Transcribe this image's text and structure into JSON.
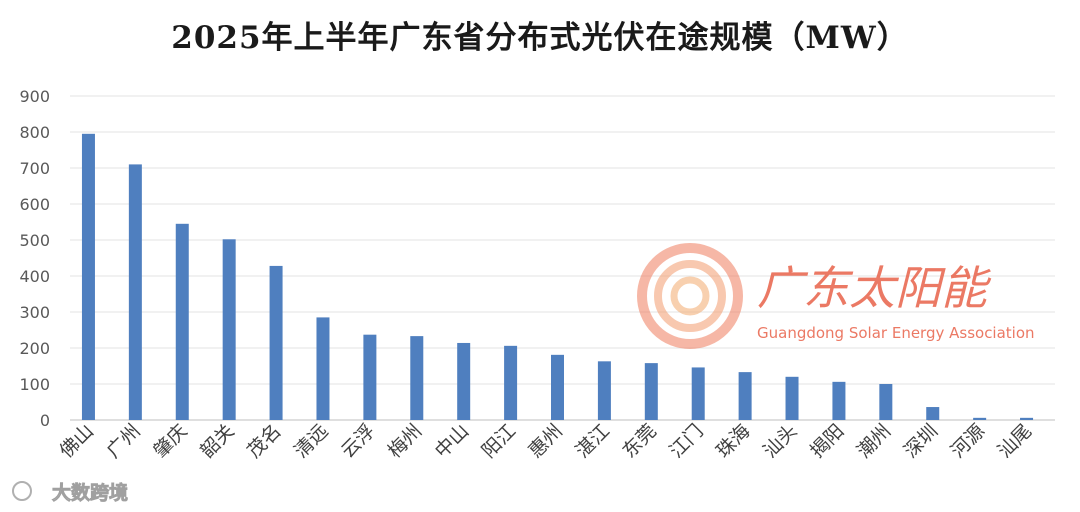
{
  "chart_data": {
    "type": "bar",
    "title": "2025年上半年广东省分布式光伏在途规模（MW）",
    "categories": [
      "佛山",
      "广州",
      "肇庆",
      "韶关",
      "茂名",
      "清远",
      "云浮",
      "梅州",
      "中山",
      "阳江",
      "惠州",
      "湛江",
      "东莞",
      "江门",
      "珠海",
      "汕头",
      "揭阳",
      "潮州",
      "深圳",
      "河源",
      "汕尾"
    ],
    "values": [
      795,
      710,
      545,
      502,
      428,
      285,
      237,
      233,
      214,
      206,
      181,
      163,
      158,
      146,
      133,
      120,
      106,
      100,
      36,
      6,
      6
    ],
    "ylim": [
      0,
      900
    ],
    "yticks": [
      0,
      100,
      200,
      300,
      400,
      500,
      600,
      700,
      800,
      900
    ],
    "grid": true,
    "bar_color": "#4f7fbf"
  },
  "watermark": {
    "logo_cn": "广东太阳能",
    "logo_en": "Guangdong Solar Energy Association",
    "corner_mark": "大数跨境"
  }
}
